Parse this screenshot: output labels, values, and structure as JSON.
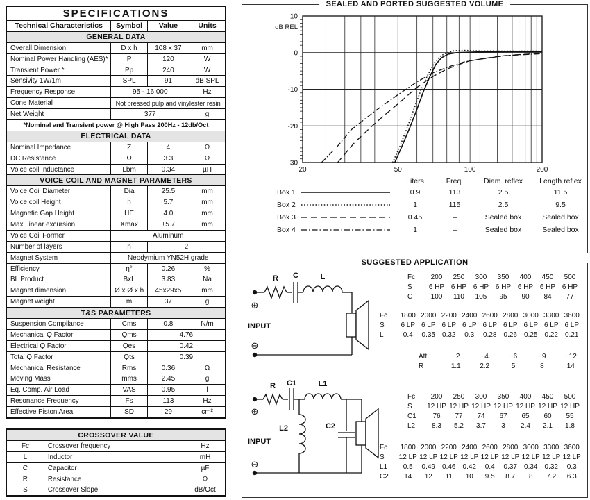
{
  "colors": {
    "paper": "#ffffff",
    "ink": "#111111",
    "grid": "#444444",
    "frame": "#222222",
    "section_bg": "#e4e4e4"
  },
  "specifications": {
    "title": "SPECIFICATIONS",
    "header_row": [
      "Technical Characteristics",
      "Symbol",
      "Value",
      "Units"
    ],
    "sections": [
      {
        "name": "GENERAL DATA",
        "rows": [
          {
            "cells": [
              {
                "t": "Overall Dimension",
                "a": "l"
              },
              {
                "t": "D x h"
              },
              {
                "t": "108 x 37"
              },
              {
                "t": "mm"
              }
            ]
          },
          {
            "cells": [
              {
                "t": "Nominal Power Handling (AES)*",
                "a": "l"
              },
              {
                "t": "P"
              },
              {
                "t": "120"
              },
              {
                "t": "W"
              }
            ]
          },
          {
            "cells": [
              {
                "t": "Transient Power *",
                "a": "l"
              },
              {
                "t": "Pp"
              },
              {
                "t": "240"
              },
              {
                "t": "W"
              }
            ]
          },
          {
            "cells": [
              {
                "t": "Sensivity 1W/1m",
                "a": "l"
              },
              {
                "t": "SPL"
              },
              {
                "t": "91"
              },
              {
                "t": "dB SPL"
              }
            ]
          },
          {
            "cells": [
              {
                "t": "Frequency Response",
                "a": "l"
              },
              {
                "t": "95 - 16.000",
                "s": 2
              },
              {
                "t": "Hz"
              }
            ]
          },
          {
            "cells": [
              {
                "t": "Cone Material",
                "a": "l"
              },
              {
                "t": "Not pressed pulp and vinylester resin",
                "s": 3,
                "c": "sm"
              }
            ]
          },
          {
            "cells": [
              {
                "t": "Net Weight",
                "a": "l"
              },
              {
                "t": "377",
                "s": 2
              },
              {
                "t": "g"
              }
            ]
          },
          {
            "cells": [
              {
                "t": "*Nominal and Transient power @ High Pass 200Hz - 12db/Oct",
                "s": 4,
                "c": "fn"
              }
            ]
          }
        ]
      },
      {
        "name": "ELECTRICAL DATA",
        "rows": [
          {
            "cells": [
              {
                "t": "Nominal Impedance",
                "a": "l"
              },
              {
                "t": "Z"
              },
              {
                "t": "4"
              },
              {
                "t": "Ω"
              }
            ]
          },
          {
            "cells": [
              {
                "t": "DC Resistance",
                "a": "l"
              },
              {
                "t": "Ω"
              },
              {
                "t": "3.3"
              },
              {
                "t": "Ω"
              }
            ]
          },
          {
            "cells": [
              {
                "t": "Voice coil Inductance",
                "a": "l"
              },
              {
                "t": "Lbm"
              },
              {
                "t": "0.34"
              },
              {
                "t": "µH"
              }
            ]
          }
        ]
      },
      {
        "name": "VOICE COIL AND MAGNET PARAMETERS",
        "rows": [
          {
            "cells": [
              {
                "t": "Voice Coil Diameter",
                "a": "l"
              },
              {
                "t": "Dia"
              },
              {
                "t": "25.5"
              },
              {
                "t": "mm"
              }
            ]
          },
          {
            "cells": [
              {
                "t": "Voice coil Height",
                "a": "l"
              },
              {
                "t": "h"
              },
              {
                "t": "5.7"
              },
              {
                "t": "mm"
              }
            ]
          },
          {
            "cells": [
              {
                "t": "Magnetic Gap Height",
                "a": "l"
              },
              {
                "t": "HE"
              },
              {
                "t": "4.0"
              },
              {
                "t": "mm"
              }
            ]
          },
          {
            "cells": [
              {
                "t": "Max Linear excursion",
                "a": "l"
              },
              {
                "t": "Xmax"
              },
              {
                "t": "±5.7"
              },
              {
                "t": "mm"
              }
            ]
          },
          {
            "cells": [
              {
                "t": "Voice Coil Former",
                "a": "l"
              },
              {
                "t": "Aluminum",
                "s": 3
              }
            ]
          },
          {
            "cells": [
              {
                "t": "Number of layers",
                "a": "l"
              },
              {
                "t": "n"
              },
              {
                "t": "2",
                "s": 2
              }
            ]
          },
          {
            "cells": [
              {
                "t": "Magnet System",
                "a": "l"
              },
              {
                "t": "Neodymium YN52H grade",
                "s": 3
              }
            ]
          },
          {
            "cells": [
              {
                "t": "Efficiency",
                "a": "l"
              },
              {
                "t": "η°"
              },
              {
                "t": "0.26"
              },
              {
                "t": "%"
              }
            ]
          },
          {
            "cells": [
              {
                "t": "BL Product",
                "a": "l"
              },
              {
                "t": "BxL"
              },
              {
                "t": "3.83"
              },
              {
                "t": "Na"
              }
            ]
          },
          {
            "cells": [
              {
                "t": "Magnet dimension",
                "a": "l"
              },
              {
                "t": "Ø x Ø x h"
              },
              {
                "t": "45x29x5"
              },
              {
                "t": "mm"
              }
            ]
          },
          {
            "cells": [
              {
                "t": "Magnet weight",
                "a": "l"
              },
              {
                "t": "m"
              },
              {
                "t": "37"
              },
              {
                "t": "g"
              }
            ]
          }
        ]
      },
      {
        "name": "T&S PARAMETERS",
        "rows": [
          {
            "cells": [
              {
                "t": "Suspension Compilance",
                "a": "l"
              },
              {
                "t": "Cms"
              },
              {
                "t": "0.8"
              },
              {
                "t": "N/m"
              }
            ]
          },
          {
            "cells": [
              {
                "t": "Mechanical Q Factor",
                "a": "l"
              },
              {
                "t": "Qms"
              },
              {
                "t": "4.76",
                "s": 2
              }
            ]
          },
          {
            "cells": [
              {
                "t": "Electrical Q Factor",
                "a": "l"
              },
              {
                "t": "Qes"
              },
              {
                "t": "0.42",
                "s": 2
              }
            ]
          },
          {
            "cells": [
              {
                "t": "Total Q Factor",
                "a": "l"
              },
              {
                "t": "Qts"
              },
              {
                "t": "0.39",
                "s": 2
              }
            ]
          },
          {
            "cells": [
              {
                "t": "Mechanical Resistance",
                "a": "l"
              },
              {
                "t": "Rms"
              },
              {
                "t": "0.36"
              },
              {
                "t": "Ω"
              }
            ]
          },
          {
            "cells": [
              {
                "t": "Moving Mass",
                "a": "l"
              },
              {
                "t": "mms"
              },
              {
                "t": "2.45"
              },
              {
                "t": "g"
              }
            ]
          },
          {
            "cells": [
              {
                "t": "Eq. Comp. Air Load",
                "a": "l"
              },
              {
                "t": "VAS"
              },
              {
                "t": "0.95"
              },
              {
                "t": "l"
              }
            ]
          },
          {
            "cells": [
              {
                "t": "Resonance Frequency",
                "a": "l"
              },
              {
                "t": "Fs"
              },
              {
                "t": "113"
              },
              {
                "t": "Hz"
              }
            ]
          },
          {
            "cells": [
              {
                "t": "Effective Piston Area",
                "a": "l"
              },
              {
                "t": "SD"
              },
              {
                "t": "29"
              },
              {
                "t": "cm²"
              }
            ]
          }
        ]
      }
    ]
  },
  "crossover": {
    "title": "CROSSOVER VALUE",
    "rows": [
      [
        "Fc",
        "Crossover frequency",
        "Hz"
      ],
      [
        "L",
        "Inductor",
        "mH"
      ],
      [
        "C",
        "Capacitor",
        "µF"
      ],
      [
        "R",
        "Resistance",
        "Ω"
      ],
      [
        "S",
        "Crossover Slope",
        "dB/Oct"
      ]
    ]
  },
  "chart_data": {
    "type": "line",
    "title": "SEALED AND PORTED SUGGESTED VOLUME",
    "ylabel": "dB REL",
    "xlim": [
      20,
      200
    ],
    "ylim": [
      -30,
      10
    ],
    "x_ticks": [
      20,
      50,
      100,
      200
    ],
    "y_ticks": [
      10,
      0,
      -10,
      -20,
      -30
    ],
    "x_gridlines": [
      25,
      30,
      35,
      40,
      45,
      50,
      60,
      70,
      80,
      90,
      100,
      110,
      120,
      130,
      140,
      150,
      160,
      170,
      180,
      190
    ],
    "y_gridlines": [
      0,
      -10,
      -20
    ],
    "legend_headers": [
      "Liters",
      "Freq.",
      "Diam. reflex",
      "Length reflex"
    ],
    "series": [
      {
        "name": "Box 1",
        "style": "solid",
        "dash": "",
        "width": 1.6,
        "liters": "0.9",
        "freq": "113",
        "diam_reflex": "2.5",
        "length_reflex": "11.5",
        "points": [
          [
            48.5,
            -30
          ],
          [
            52,
            -25.5
          ],
          [
            56,
            -20.5
          ],
          [
            60,
            -15.5
          ],
          [
            64,
            -10.5
          ],
          [
            68,
            -6.5
          ],
          [
            72,
            -3.2
          ],
          [
            76,
            -1.4
          ],
          [
            81,
            -0.4
          ],
          [
            88,
            0
          ],
          [
            110,
            0.2
          ],
          [
            150,
            0.25
          ],
          [
            200,
            0.25
          ]
        ]
      },
      {
        "name": "Box 2",
        "style": "dotted",
        "dash": "1.5 2.6",
        "width": 1.6,
        "liters": "1",
        "freq": "115",
        "diam_reflex": "2.5",
        "length_reflex": "9.5",
        "points": [
          [
            47.5,
            -30
          ],
          [
            51,
            -25.5
          ],
          [
            55,
            -20
          ],
          [
            59,
            -14.5
          ],
          [
            63,
            -9.5
          ],
          [
            67,
            -5.8
          ],
          [
            71,
            -2.8
          ],
          [
            75,
            -1
          ],
          [
            80,
            0
          ],
          [
            86,
            0.5
          ],
          [
            95,
            0.6
          ],
          [
            110,
            0.45
          ],
          [
            150,
            0.4
          ],
          [
            200,
            0.4
          ]
        ]
      },
      {
        "name": "Box 3",
        "style": "dashed",
        "dash": "9 5",
        "width": 1.3,
        "liters": "0.45",
        "freq": "–",
        "diam_reflex": "Sealed box",
        "length_reflex": "Sealed box",
        "points": [
          [
            28,
            -30
          ],
          [
            33,
            -24.5
          ],
          [
            39,
            -20
          ],
          [
            45,
            -16.5
          ],
          [
            50,
            -14
          ],
          [
            60,
            -9.5
          ],
          [
            70,
            -6.5
          ],
          [
            80,
            -4.5
          ],
          [
            92,
            -3
          ],
          [
            100,
            -2.2
          ],
          [
            125,
            -1.2
          ],
          [
            155,
            -0.6
          ],
          [
            200,
            -0.2
          ]
        ]
      },
      {
        "name": "Box 4",
        "style": "dashdot",
        "dash": "8 3 1.5 3",
        "width": 1.3,
        "liters": "1",
        "freq": "–",
        "diam_reflex": "Sealed box",
        "length_reflex": "Sealed box",
        "points": [
          [
            24,
            -30
          ],
          [
            28,
            -25.5
          ],
          [
            32,
            -21
          ],
          [
            40,
            -16
          ],
          [
            50,
            -11.5
          ],
          [
            60,
            -8
          ],
          [
            70,
            -5.5
          ],
          [
            82,
            -3.8
          ],
          [
            95,
            -2.5
          ],
          [
            110,
            -1.8
          ],
          [
            140,
            -0.8
          ],
          [
            200,
            -0.3
          ]
        ]
      }
    ]
  },
  "application": {
    "title": "SUGGESTED APPLICATION",
    "input_label": "INPUT",
    "plus_symbol": "⊕",
    "minus_symbol": "⊖",
    "circuit1": {
      "r": "R",
      "c": "C",
      "l": "L"
    },
    "circuit2": {
      "r": "R",
      "c1": "C1",
      "l1": "L1",
      "l2": "L2",
      "c2": "C2"
    },
    "hp6": {
      "rows": [
        [
          "Fc",
          "200",
          "250",
          "300",
          "350",
          "400",
          "450",
          "500"
        ],
        [
          "S",
          "6 HP",
          "6 HP",
          "6 HP",
          "6 HP",
          "6 HP",
          "6 HP",
          "6 HP"
        ],
        [
          "C",
          "100",
          "110",
          "105",
          "95",
          "90",
          "84",
          "77"
        ]
      ]
    },
    "lp6": {
      "rows": [
        [
          "Fc",
          "1800",
          "2000",
          "2200",
          "2400",
          "2600",
          "2800",
          "3000",
          "3300",
          "3600"
        ],
        [
          "S",
          "6 LP",
          "6 LP",
          "6 LP",
          "6 LP",
          "6 LP",
          "6 LP",
          "6 LP",
          "6 LP",
          "6 LP"
        ],
        [
          "L",
          "0.4",
          "0.35",
          "0.32",
          "0.3",
          "0.28",
          "0.26",
          "0.25",
          "0.22",
          "0.21"
        ]
      ]
    },
    "att": {
      "rows": [
        [
          "Att.",
          "−2",
          "−4",
          "−6",
          "−9",
          "−12"
        ],
        [
          "R",
          "1.1",
          "2.2",
          "5",
          "8",
          "14"
        ]
      ]
    },
    "hp12": {
      "rows": [
        [
          "Fc",
          "200",
          "250",
          "300",
          "350",
          "400",
          "450",
          "500"
        ],
        [
          "S",
          "12 HP",
          "12 HP",
          "12 HP",
          "12 HP",
          "12 HP",
          "12 HP",
          "12 HP"
        ],
        [
          "C1",
          "76",
          "77",
          "74",
          "67",
          "65",
          "60",
          "55"
        ],
        [
          "L2",
          "8.3",
          "5.2",
          "3.7",
          "3",
          "2.4",
          "2.1",
          "1.8"
        ]
      ]
    },
    "lp12": {
      "rows": [
        [
          "Fc",
          "1800",
          "2000",
          "2200",
          "2400",
          "2600",
          "2800",
          "3000",
          "3300",
          "3600"
        ],
        [
          "S",
          "12 LP",
          "12 LP",
          "12 LP",
          "12 LP",
          "12 LP",
          "12 LP",
          "12 LP",
          "12 LP",
          "12 LP"
        ],
        [
          "L1",
          "0.5",
          "0.49",
          "0.46",
          "0.42",
          "0.4",
          "0.37",
          "0.34",
          "0.32",
          "0.3"
        ],
        [
          "C2",
          "14",
          "12",
          "11",
          "10",
          "9.5",
          "8.7",
          "8",
          "7.2",
          "6.3"
        ]
      ]
    }
  }
}
